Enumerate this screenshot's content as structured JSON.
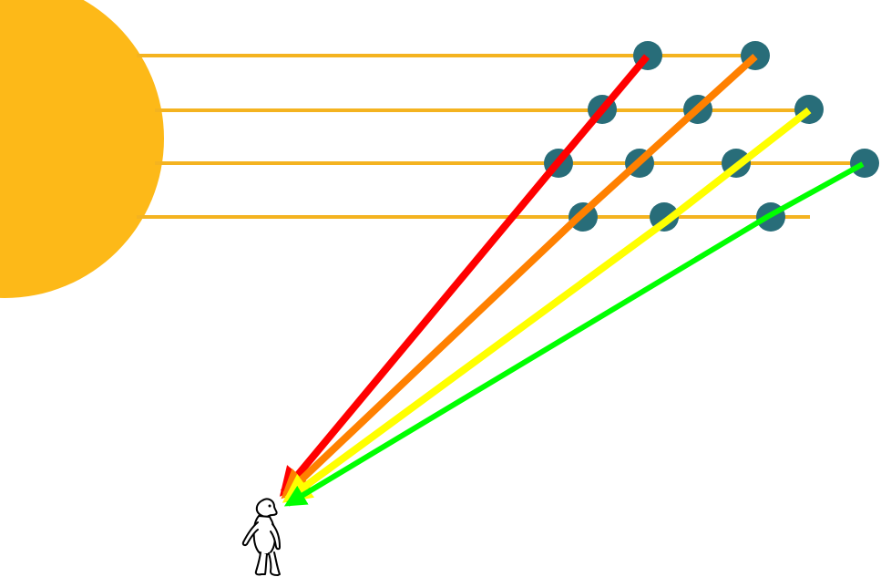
{
  "diagram": {
    "elements": {
      "sun": {
        "color": "#FDB918"
      },
      "sunlight_rays": {
        "count": 4,
        "color": "#F4B320"
      },
      "droplets": {
        "count": 12,
        "color": "#286D79"
      },
      "colored_rays": [
        {
          "color": "#FF0000"
        },
        {
          "color": "#FF8000"
        },
        {
          "color": "#FFFF00"
        },
        {
          "color": "#00FF00"
        }
      ],
      "observer": {
        "stroke": "#000000",
        "fill": "#ffffff"
      }
    }
  }
}
